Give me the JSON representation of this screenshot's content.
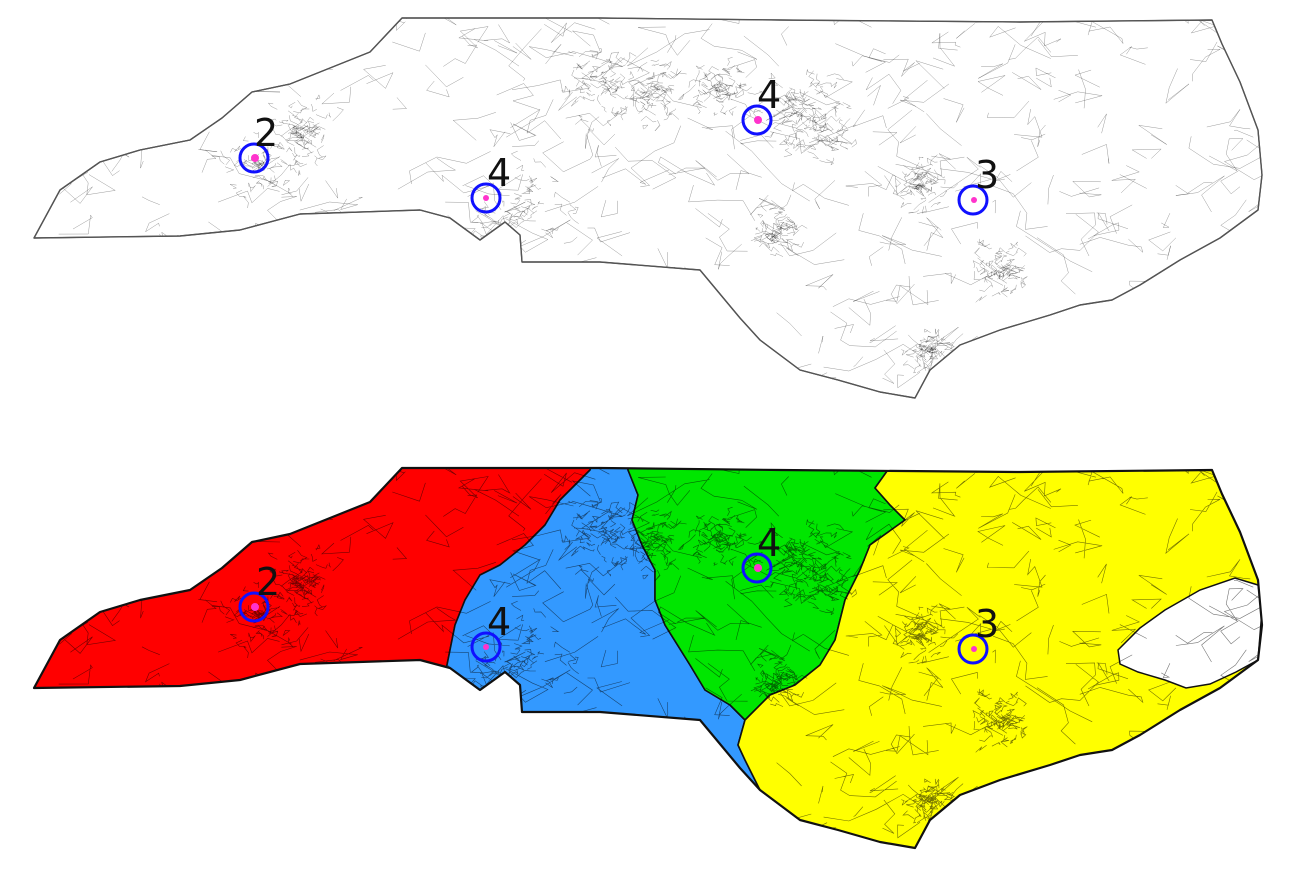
{
  "colors": {
    "region_red": "#ff0000",
    "region_blue": "#3399ff",
    "region_green": "#00e600",
    "region_yellow": "#ffff00",
    "marker_ring": "#1010ff",
    "marker_dot": "#ff33cc",
    "tract_lines": "#000000"
  },
  "top_map": {
    "markers": [
      {
        "label": "2"
      },
      {
        "label": "4"
      },
      {
        "label": "4"
      },
      {
        "label": "3"
      }
    ]
  },
  "bottom_map": {
    "markers": [
      {
        "label": "2"
      },
      {
        "label": "4"
      },
      {
        "label": "4"
      },
      {
        "label": "3"
      }
    ]
  }
}
